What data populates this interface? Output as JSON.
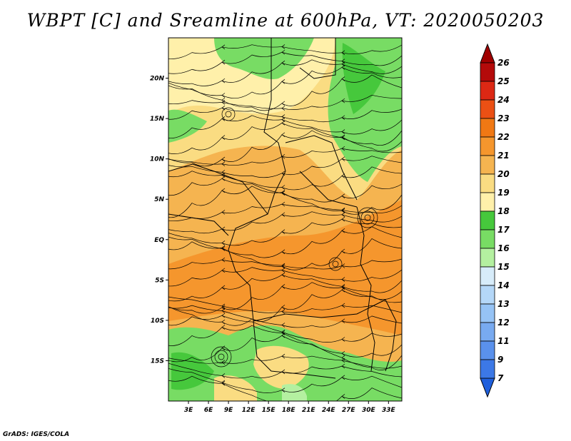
{
  "title": "WBPT [C] and Sreamline at 600hPa, VT: 2020050203",
  "credit": "GrADS: IGES/COLA",
  "map": {
    "lon_range": [
      0,
      35
    ],
    "lat_range": [
      -20,
      25
    ],
    "lat_ticks": [
      {
        "value": 20,
        "label": "20N"
      },
      {
        "value": 15,
        "label": "15N"
      },
      {
        "value": 10,
        "label": "10N"
      },
      {
        "value": 5,
        "label": "5N"
      },
      {
        "value": 0,
        "label": "EQ"
      },
      {
        "value": -5,
        "label": "5S"
      },
      {
        "value": -10,
        "label": "10S"
      },
      {
        "value": -15,
        "label": "15S"
      }
    ],
    "lon_ticks": [
      {
        "value": 3,
        "label": "3E"
      },
      {
        "value": 6,
        "label": "6E"
      },
      {
        "value": 9,
        "label": "9E"
      },
      {
        "value": 12,
        "label": "12E"
      },
      {
        "value": 15,
        "label": "15E"
      },
      {
        "value": 18,
        "label": "18E"
      },
      {
        "value": 21,
        "label": "21E"
      },
      {
        "value": 24,
        "label": "24E"
      },
      {
        "value": 27,
        "label": "27E"
      },
      {
        "value": 30,
        "label": "30E"
      },
      {
        "value": 33,
        "label": "33E"
      }
    ]
  },
  "colorbar": {
    "levels": [
      {
        "label": "7",
        "color": "#1f5fdc"
      },
      {
        "label": "9",
        "color": "#3c78e6"
      },
      {
        "label": "11",
        "color": "#5a91ec"
      },
      {
        "label": "12",
        "color": "#78aaf0"
      },
      {
        "label": "13",
        "color": "#96c3f5"
      },
      {
        "label": "14",
        "color": "#b4d7f8"
      },
      {
        "label": "15",
        "color": "#d7ecfa"
      },
      {
        "label": "16",
        "color": "#b4f0a0"
      },
      {
        "label": "17",
        "color": "#78dc64"
      },
      {
        "label": "18",
        "color": "#46c83c"
      },
      {
        "label": "19",
        "color": "#fff0aa"
      },
      {
        "label": "20",
        "color": "#fadc82"
      },
      {
        "label": "21",
        "color": "#f5b450"
      },
      {
        "label": "22",
        "color": "#f5962d"
      },
      {
        "label": "23",
        "color": "#f07814"
      },
      {
        "label": "24",
        "color": "#eb5014"
      },
      {
        "label": "25",
        "color": "#dc2814"
      },
      {
        "label": "26",
        "color": "#b40a0a"
      }
    ],
    "low_arrow_color": "#1f5fdc",
    "high_arrow_color": "#a00000"
  }
}
